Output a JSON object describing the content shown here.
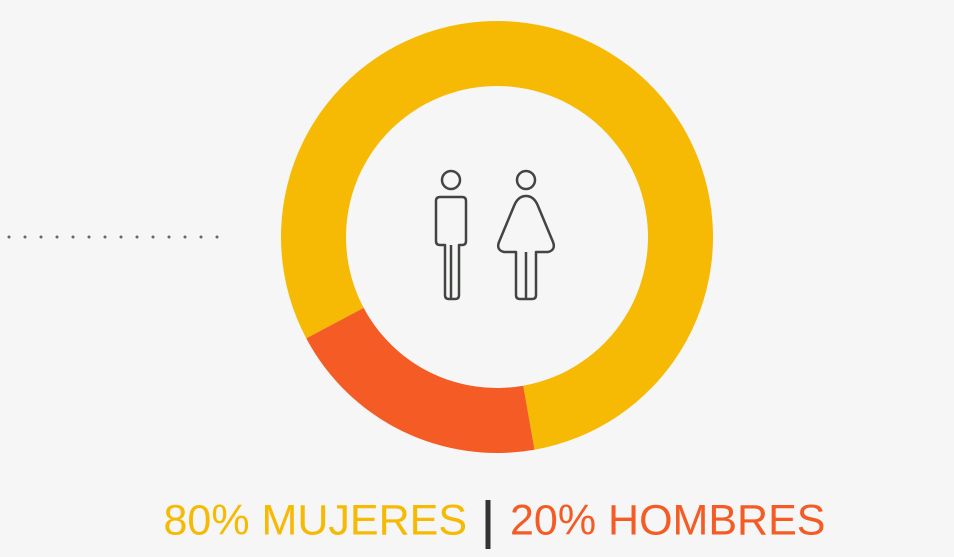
{
  "chart_data": {
    "type": "pie",
    "donut": true,
    "values": [
      80,
      20
    ],
    "value_labels": [
      "80% MUJERES",
      "20% HOMBRES"
    ],
    "colors": [
      "#f6b904",
      "#f45b25"
    ]
  }
}
